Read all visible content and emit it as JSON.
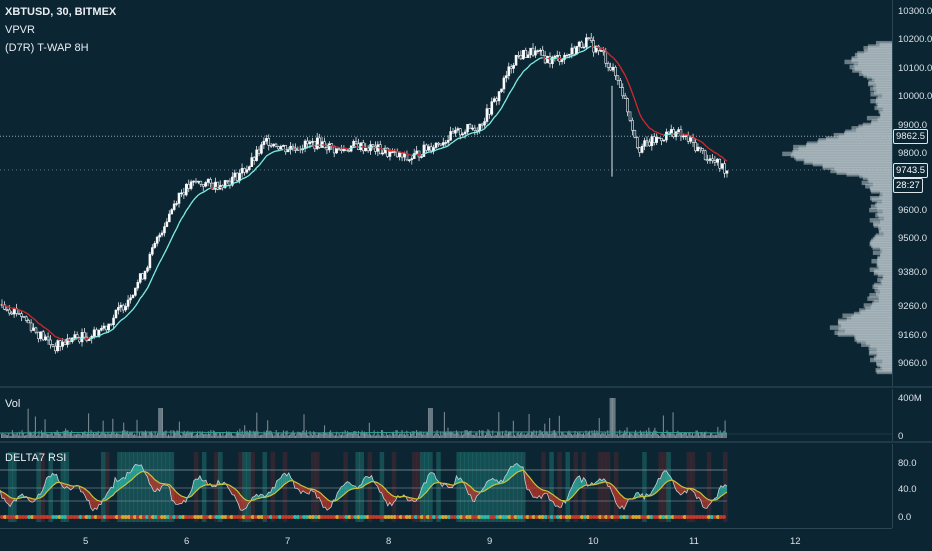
{
  "header": {
    "symbol": "XBTUSD, 30, BITMEX",
    "indicator1": "VPVR",
    "indicator2": "(D7R) T-WAP 8H"
  },
  "price_axis": [
    "10300.0",
    "10200.0",
    "10100.0",
    "10000.0",
    "9900.0",
    "9800.0",
    "9600.0",
    "9500.0",
    "9380.0",
    "9260.0",
    "9160.0",
    "9060.0"
  ],
  "price_tags": {
    "reference": "9862.5",
    "last": "9743.5",
    "countdown": "28:27"
  },
  "volume": {
    "title": "Vol",
    "scale_top": "400M",
    "scale_bottom": "0"
  },
  "rsi": {
    "title": "DELTA7 RSI",
    "scale": [
      "80.0",
      "40.0",
      "0.0"
    ]
  },
  "time_axis": [
    "5",
    "6",
    "7",
    "8",
    "9",
    "10",
    "11",
    "12"
  ],
  "colors": {
    "bg": "#0c2532",
    "up": "#e9eef2",
    "down": "#e9eef2",
    "twap_up": "#7ff0e6",
    "twap_down": "#d22a2a",
    "profile": "#b8c4cb",
    "rsi_fill_up": "#2fb8a8",
    "rsi_fill_down": "#c0392b"
  },
  "chart_data": {
    "type": "candlestick",
    "ylim": [
      9000,
      10340
    ],
    "x_ticks": [
      "5",
      "6",
      "7",
      "8",
      "9",
      "10",
      "11",
      "12"
    ],
    "close_path": [
      9270,
      9240,
      9170,
      9120,
      9150,
      9160,
      9200,
      9280,
      9380,
      9530,
      9660,
      9700,
      9690,
      9710,
      9760,
      9850,
      9820,
      9830,
      9840,
      9810,
      9830,
      9820,
      9800,
      9780,
      9820,
      9850,
      9880,
      9900,
      10000,
      10140,
      10160,
      10130,
      10150,
      10200,
      10150,
      10040,
      9820,
      9850,
      9880,
      9840,
      9780,
      9743.5
    ],
    "reference_price": 9862.5,
    "last_price": 9743.5
  }
}
